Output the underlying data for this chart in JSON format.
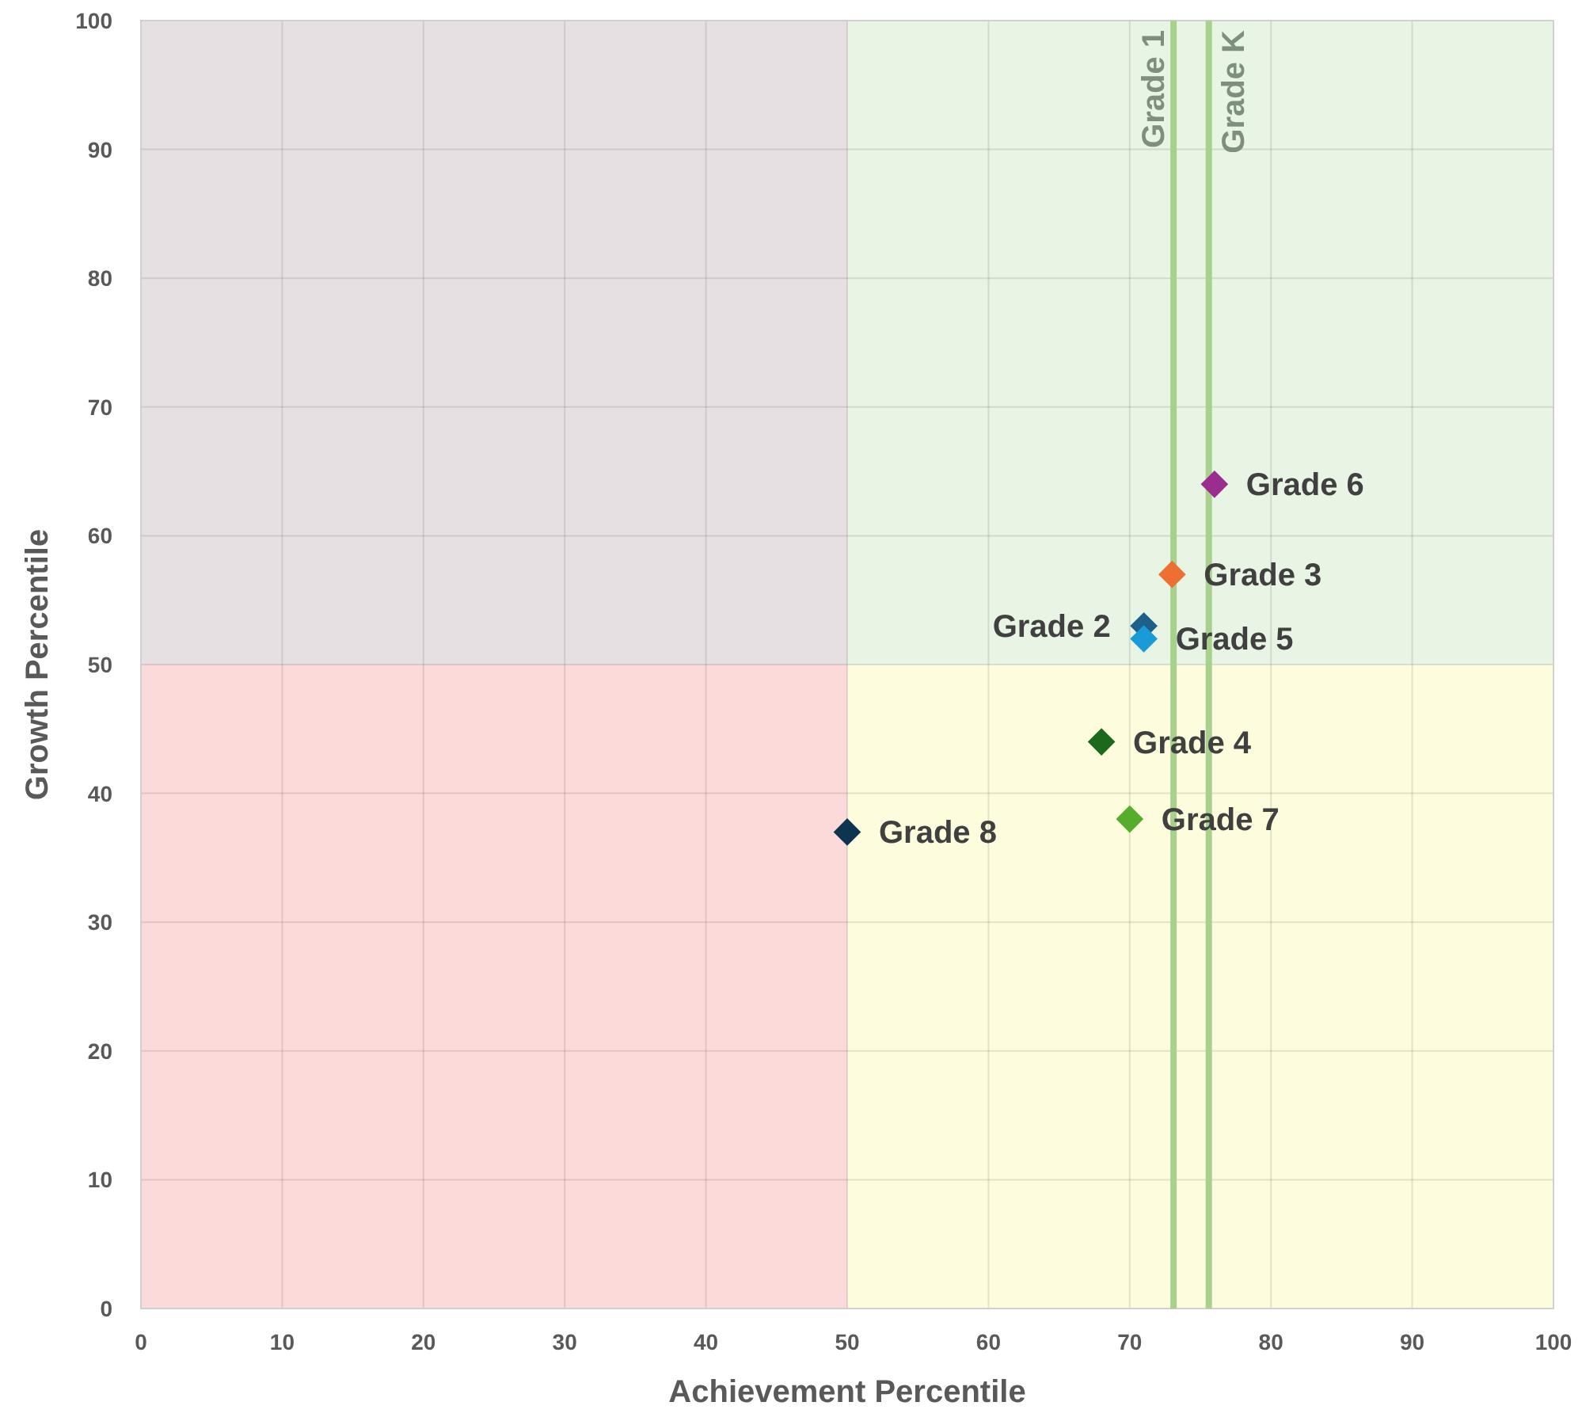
{
  "chart_data": {
    "type": "scatter",
    "xlabel": "Achievement Percentile",
    "ylabel": "Growth Percentile",
    "xlim": [
      0,
      100
    ],
    "ylim": [
      0,
      100
    ],
    "xticks": [
      0,
      10,
      20,
      30,
      40,
      50,
      60,
      70,
      80,
      90,
      100
    ],
    "yticks": [
      0,
      10,
      20,
      30,
      40,
      50,
      60,
      70,
      80,
      90,
      100
    ],
    "grid": true,
    "marker": "diamond",
    "bands": [
      {
        "axis": "x",
        "from": 0,
        "to": 50,
        "color": "#fcdada"
      },
      {
        "axis": "x",
        "from": 50,
        "to": 100,
        "color": "#fdfcdc"
      },
      {
        "axis": "y",
        "from": 50,
        "to": 100,
        "color": "#c8e8f0"
      }
    ],
    "ref_lines": [
      {
        "axis": "x",
        "value": 73.1,
        "label": "Grade 1",
        "color": "#a9d18e"
      },
      {
        "axis": "x",
        "value": 75.6,
        "label": "Grade K",
        "color": "#a9d18e"
      }
    ],
    "series": [
      {
        "name": "Grade 6",
        "color": "#9b2d8e",
        "x": [
          76
        ],
        "values": [
          64
        ]
      },
      {
        "name": "Grade 3",
        "color": "#ed7032",
        "x": [
          73
        ],
        "values": [
          57
        ]
      },
      {
        "name": "Grade 2",
        "color": "#1f5f8b",
        "x": [
          71
        ],
        "values": [
          53
        ]
      },
      {
        "name": "Grade 5",
        "color": "#1a9ad6",
        "x": [
          71
        ],
        "values": [
          52
        ]
      },
      {
        "name": "Grade 4",
        "color": "#1b6a1b",
        "x": [
          68
        ],
        "values": [
          44
        ]
      },
      {
        "name": "Grade 7",
        "color": "#56ad2c",
        "x": [
          70
        ],
        "values": [
          38
        ]
      },
      {
        "name": "Grade 8",
        "color": "#0e3550",
        "x": [
          50
        ],
        "values": [
          37
        ]
      }
    ]
  }
}
